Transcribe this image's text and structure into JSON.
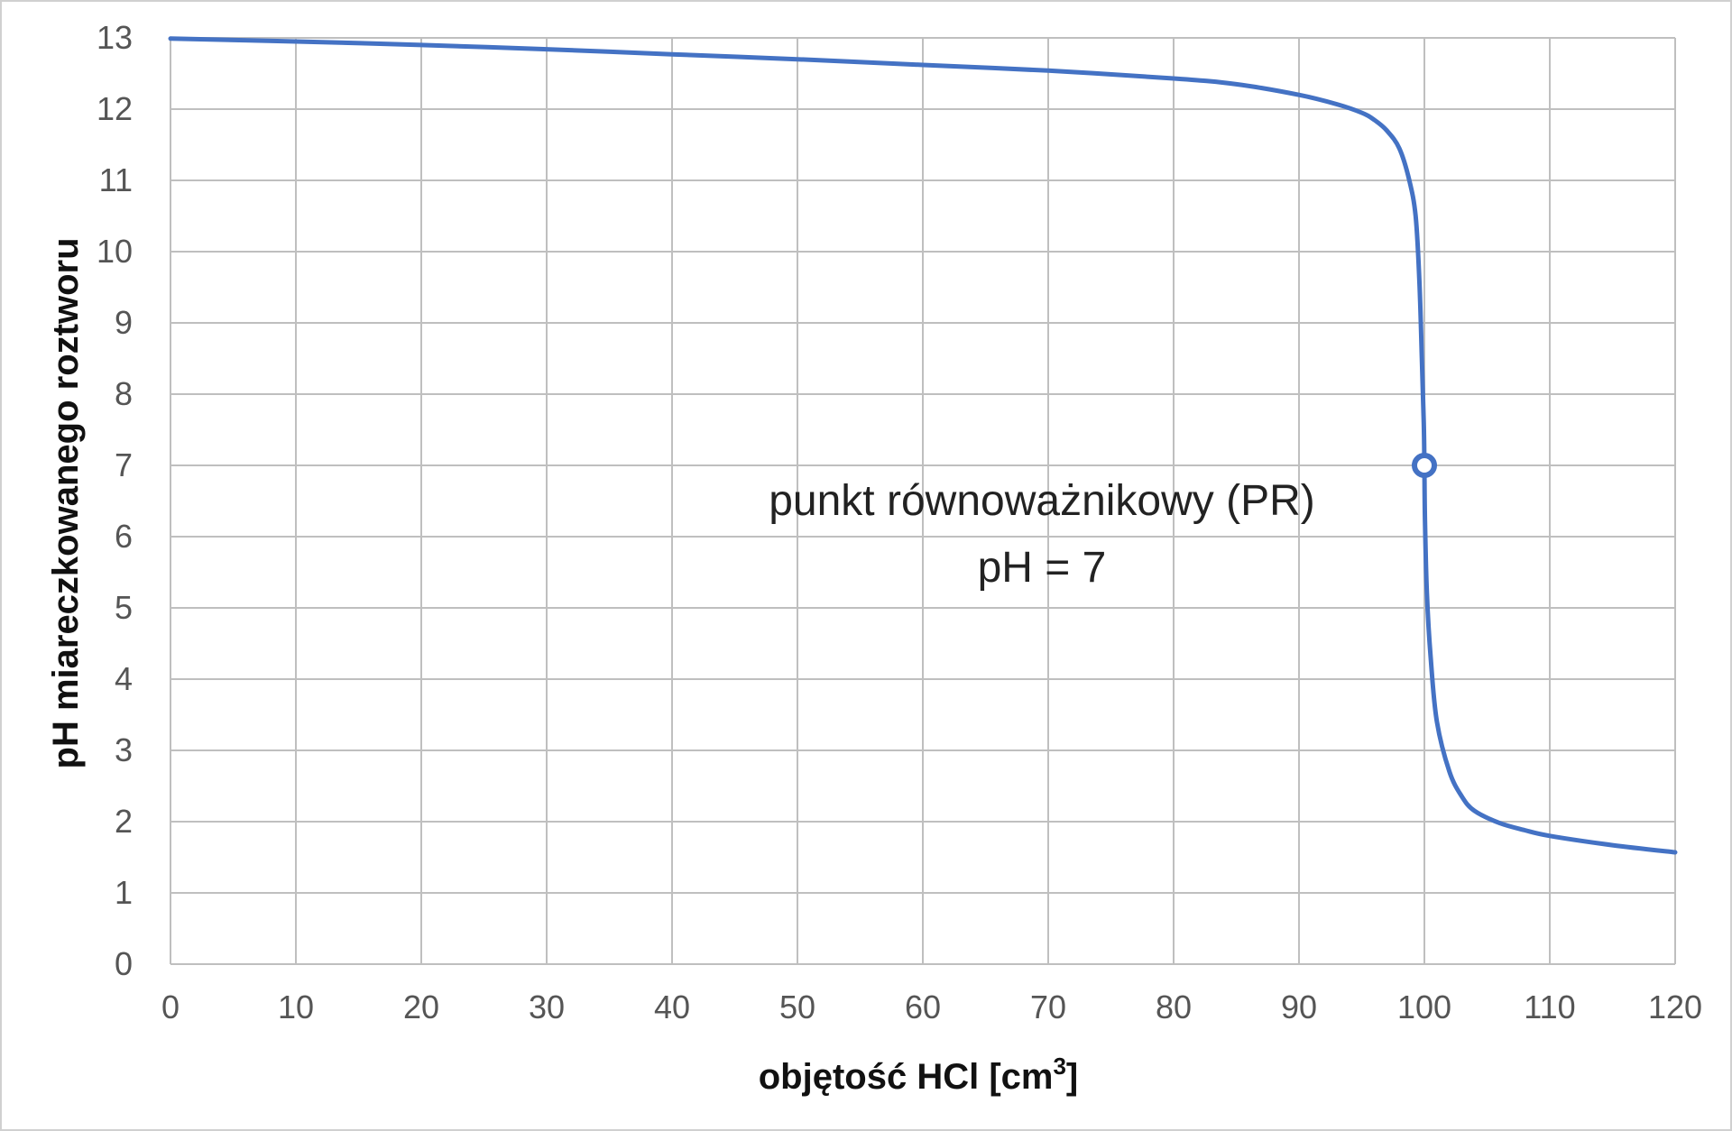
{
  "chart_data": {
    "type": "line",
    "title": "",
    "xlabel": "objętość HCl [cm",
    "xlabel_superscript": "3",
    "xlabel_suffix": "]",
    "ylabel": "pH miareczkowanego roztworu",
    "xlim": [
      0,
      120
    ],
    "ylim": [
      0,
      13
    ],
    "x_ticks": [
      0,
      10,
      20,
      30,
      40,
      50,
      60,
      70,
      80,
      90,
      100,
      110,
      120
    ],
    "y_ticks": [
      0,
      1,
      2,
      3,
      4,
      5,
      6,
      7,
      8,
      9,
      10,
      11,
      12,
      13
    ],
    "grid": true,
    "legend": "none",
    "line_color": "#4472c4",
    "grid_color": "#bfbfbf",
    "series": [
      {
        "points": [
          [
            0,
            12.99
          ],
          [
            10,
            12.95
          ],
          [
            20,
            12.9
          ],
          [
            30,
            12.84
          ],
          [
            40,
            12.77
          ],
          [
            50,
            12.7
          ],
          [
            60,
            12.62
          ],
          [
            70,
            12.54
          ],
          [
            80,
            12.43
          ],
          [
            85,
            12.35
          ],
          [
            90,
            12.2
          ],
          [
            93,
            12.07
          ],
          [
            95,
            11.95
          ],
          [
            96,
            11.85
          ],
          [
            97,
            11.7
          ],
          [
            98,
            11.45
          ],
          [
            98.8,
            11.0
          ],
          [
            99.3,
            10.5
          ],
          [
            99.6,
            9.6
          ],
          [
            99.8,
            8.5
          ],
          [
            99.95,
            7.6
          ],
          [
            100,
            7.0
          ],
          [
            100.05,
            6.2
          ],
          [
            100.2,
            5.2
          ],
          [
            100.5,
            4.3
          ],
          [
            101,
            3.4
          ],
          [
            102,
            2.7
          ],
          [
            103,
            2.35
          ],
          [
            104,
            2.15
          ],
          [
            106,
            1.98
          ],
          [
            108,
            1.88
          ],
          [
            110,
            1.8
          ],
          [
            115,
            1.67
          ],
          [
            120,
            1.57
          ]
        ]
      }
    ],
    "marker": {
      "x": 100,
      "y": 7
    },
    "annotation_lines": [
      "punkt równoważnikowy (PR)",
      "pH = 7"
    ]
  }
}
